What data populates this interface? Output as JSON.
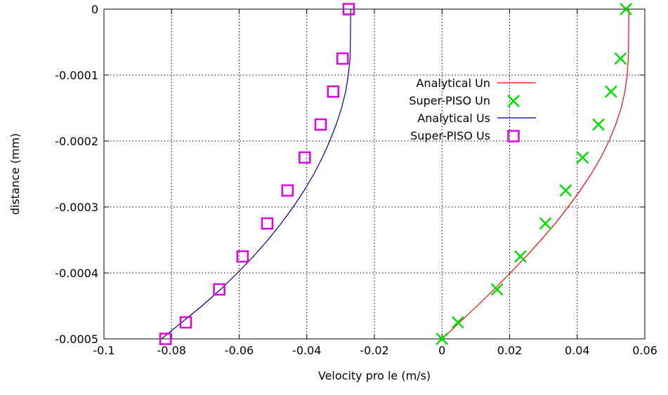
{
  "chart_data": {
    "type": "line",
    "title": "",
    "xlabel": "Velocity pro le (m/s)",
    "ylabel": "distance (mm)",
    "xlim": [
      -0.1,
      0.06
    ],
    "ylim": [
      -0.0005,
      0
    ],
    "grid": true,
    "legend_position": "top-right",
    "x_ticks": [
      {
        "value": -0.1,
        "label": "-0.1"
      },
      {
        "value": -0.08,
        "label": "-0.08"
      },
      {
        "value": -0.06,
        "label": "-0.06"
      },
      {
        "value": -0.04,
        "label": "-0.04"
      },
      {
        "value": -0.02,
        "label": "-0.02"
      },
      {
        "value": 0,
        "label": "0"
      },
      {
        "value": 0.02,
        "label": "0.02"
      },
      {
        "value": 0.04,
        "label": "0.04"
      },
      {
        "value": 0.06,
        "label": "0.06"
      }
    ],
    "y_ticks": [
      {
        "value": 0,
        "label": "0"
      },
      {
        "value": -0.0001,
        "label": "-0.0001"
      },
      {
        "value": -0.0002,
        "label": "-0.0002"
      },
      {
        "value": -0.0003,
        "label": "-0.0003"
      },
      {
        "value": -0.0004,
        "label": "-0.0004"
      },
      {
        "value": -0.0005,
        "label": "-0.0005"
      }
    ],
    "series": [
      {
        "name": "Analytical Un",
        "kind": "line",
        "color": "#ff0000",
        "points": [
          [
            0,
            -0.0005
          ],
          [
            0.0052,
            -0.000475
          ],
          [
            0.0104,
            -0.00045
          ],
          [
            0.0154,
            -0.000425
          ],
          [
            0.0202,
            -0.0004
          ],
          [
            0.0249,
            -0.000375
          ],
          [
            0.0293,
            -0.00035
          ],
          [
            0.0335,
            -0.000325
          ],
          [
            0.0373,
            -0.0003
          ],
          [
            0.0409,
            -0.000275
          ],
          [
            0.0441,
            -0.00025
          ],
          [
            0.047,
            -0.000225
          ],
          [
            0.0494,
            -0.0002
          ],
          [
            0.0514,
            -0.000175
          ],
          [
            0.053,
            -0.00015
          ],
          [
            0.0541,
            -0.000125
          ],
          [
            0.0548,
            -0.0001
          ],
          [
            0.0551,
            -7.5e-05
          ],
          [
            0.0552,
            -5e-05
          ],
          [
            0.0553,
            0
          ]
        ]
      },
      {
        "name": "Super-PISO Un",
        "kind": "marker-x",
        "color": "#00e000",
        "points": [
          [
            0,
            -0.0005
          ],
          [
            0.0047,
            -0.000475
          ],
          [
            0.0163,
            -0.000425
          ],
          [
            0.0232,
            -0.000375
          ],
          [
            0.0306,
            -0.000325
          ],
          [
            0.0366,
            -0.000275
          ],
          [
            0.0416,
            -0.000225
          ],
          [
            0.0463,
            -0.000175
          ],
          [
            0.05,
            -0.000125
          ],
          [
            0.0528,
            -7.5e-05
          ],
          [
            0.0544,
            0
          ]
        ]
      },
      {
        "name": "Analytical Us",
        "kind": "line",
        "color": "#0000a0",
        "points": [
          [
            -0.083,
            -0.0005
          ],
          [
            -0.077,
            -0.000475
          ],
          [
            -0.071,
            -0.00045
          ],
          [
            -0.0655,
            -0.000425
          ],
          [
            -0.0605,
            -0.0004
          ],
          [
            -0.0558,
            -0.000375
          ],
          [
            -0.0515,
            -0.00035
          ],
          [
            -0.0476,
            -0.000325
          ],
          [
            -0.044,
            -0.0003
          ],
          [
            -0.0408,
            -0.000275
          ],
          [
            -0.0379,
            -0.00025
          ],
          [
            -0.0354,
            -0.000225
          ],
          [
            -0.0332,
            -0.0002
          ],
          [
            -0.0313,
            -0.000175
          ],
          [
            -0.0297,
            -0.00015
          ],
          [
            -0.0285,
            -0.000125
          ],
          [
            -0.0277,
            -0.0001
          ],
          [
            -0.0272,
            -7.5e-05
          ],
          [
            -0.0271,
            -5e-05
          ],
          [
            -0.027,
            0
          ]
        ]
      },
      {
        "name": "Super-PISO Us",
        "kind": "marker-square",
        "color": "#e000e0",
        "points": [
          [
            -0.0818,
            -0.0005
          ],
          [
            -0.0758,
            -0.000475
          ],
          [
            -0.0659,
            -0.000425
          ],
          [
            -0.059,
            -0.000375
          ],
          [
            -0.0517,
            -0.000325
          ],
          [
            -0.0457,
            -0.000275
          ],
          [
            -0.0406,
            -0.000225
          ],
          [
            -0.0359,
            -0.000175
          ],
          [
            -0.0322,
            -0.000125
          ],
          [
            -0.0294,
            -7.5e-05
          ],
          [
            -0.0276,
            0
          ]
        ]
      }
    ]
  }
}
